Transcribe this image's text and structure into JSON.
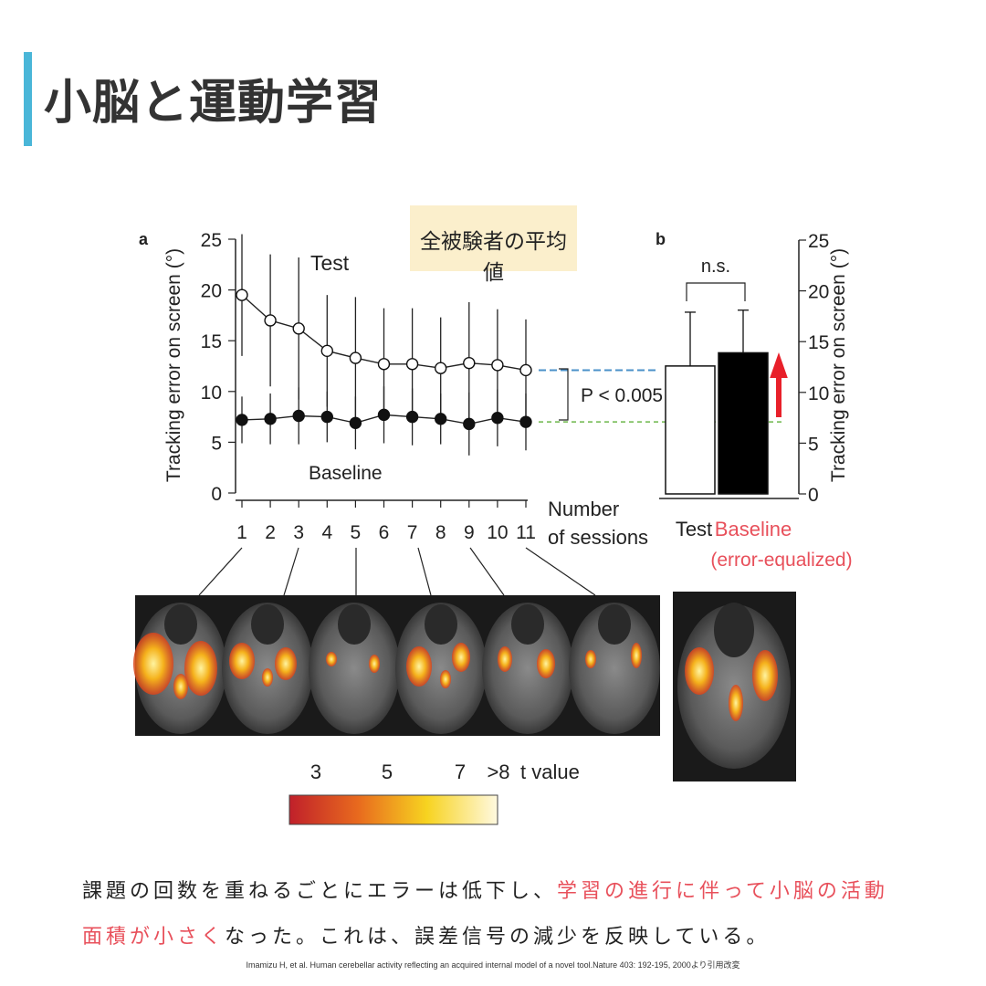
{
  "slide": {
    "title": "小脳と運動学習",
    "note": "全被験者の平均値",
    "body_text_1": "課題の回数を重ねるごとにエラーは低下し、",
    "body_text_highlight": "学習の進行に伴って小脳の活動面積が小さく",
    "body_text_2": "なった。これは、誤差信号の減少を反映している。",
    "citation": "Imamizu H, et al. Human cerebellar activity reflecting an acquired internal model of a novel tool.Nature 403: 192-195, 2000より引用改変",
    "accent_color": "#4ab6d8",
    "highlight_color": "#e8505b"
  },
  "chart_data": [
    {
      "panel_label": "a",
      "type": "line",
      "ylabel": "Tracking error on screen (°)",
      "xlabel_line1": "Number",
      "xlabel_line2": "of sessions",
      "ylim": [
        0,
        25
      ],
      "yticks": [
        "0",
        "5",
        "10",
        "15",
        "20",
        "25"
      ],
      "x": [
        "1",
        "2",
        "3",
        "4",
        "5",
        "6",
        "7",
        "8",
        "9",
        "10",
        "11"
      ],
      "series": [
        {
          "name": "Test",
          "marker": "open-circle",
          "values": [
            19.5,
            17.0,
            16.2,
            14.0,
            13.3,
            12.7,
            12.7,
            12.3,
            12.8,
            12.6,
            12.1
          ],
          "error": [
            6.0,
            6.5,
            7.0,
            5.5,
            6.0,
            5.5,
            5.5,
            5.0,
            6.0,
            5.5,
            5.0
          ]
        },
        {
          "name": "Baseline",
          "marker": "filled-circle",
          "values": [
            7.2,
            7.3,
            7.6,
            7.5,
            6.9,
            7.7,
            7.5,
            7.3,
            6.8,
            7.4,
            7.0
          ],
          "error": [
            2.3,
            2.5,
            2.8,
            2.5,
            2.6,
            2.8,
            2.8,
            2.5,
            3.1,
            2.8,
            2.8
          ]
        }
      ],
      "annotation": "P < 0.005",
      "reference_lines": [
        12.1,
        7.0
      ]
    },
    {
      "panel_label": "b",
      "type": "bar",
      "ylabel": "Tracking error on screen (°)",
      "ylim": [
        0,
        25
      ],
      "yticks": [
        "0",
        "5",
        "10",
        "15",
        "20",
        "25"
      ],
      "categories": [
        "Test",
        "Baseline"
      ],
      "category_sub": "(error-equalized)",
      "values": [
        12.6,
        13.9
      ],
      "error": [
        5.3,
        4.2
      ],
      "fills": [
        "#ffffff",
        "#000000"
      ],
      "annotation": "n.s."
    }
  ],
  "colorbar": {
    "tick_labels": [
      "3",
      "5",
      "7",
      ">8"
    ],
    "title": "t value",
    "colors": [
      "#c0202a",
      "#e86a1e",
      "#f7d320",
      "#fff9e0"
    ]
  }
}
